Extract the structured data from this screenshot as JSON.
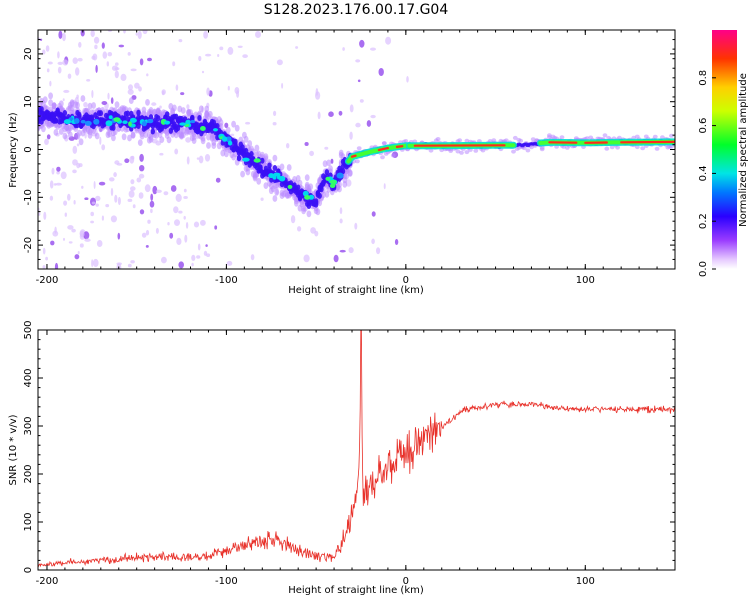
{
  "title": "S128.2023.176.00.17.G04",
  "chart_data": [
    {
      "type": "heatmap",
      "xlabel": "Height of straight line (km)",
      "ylabel": "Frequency (Hz)",
      "xlim": [
        -205,
        150
      ],
      "ylim": [
        -25,
        25
      ],
      "xticks": [
        -200,
        -100,
        0,
        100
      ],
      "yticks": [
        -20,
        -10,
        0,
        10,
        20
      ],
      "colorbar": {
        "label": "Normalized spectral amplitude",
        "range": [
          0,
          1
        ],
        "ticks": [
          "0.0",
          "0.2",
          "0.4",
          "0.6",
          "0.8"
        ]
      },
      "ridge": [
        {
          "x": -200,
          "y": 7
        },
        {
          "x": -180,
          "y": 6
        },
        {
          "x": -160,
          "y": 6.2
        },
        {
          "x": -140,
          "y": 5.5
        },
        {
          "x": -120,
          "y": 5.5
        },
        {
          "x": -110,
          "y": 5
        },
        {
          "x": -100,
          "y": 2
        },
        {
          "x": -90,
          "y": -1
        },
        {
          "x": -80,
          "y": -4
        },
        {
          "x": -70,
          "y": -6
        },
        {
          "x": -60,
          "y": -9
        },
        {
          "x": -50,
          "y": -11
        },
        {
          "x": -45,
          "y": -6
        },
        {
          "x": -40,
          "y": -7
        },
        {
          "x": -35,
          "y": -4
        },
        {
          "x": -30,
          "y": -1.5
        },
        {
          "x": -20,
          "y": -0.5
        },
        {
          "x": -10,
          "y": 0.3
        },
        {
          "x": 0,
          "y": 0.8
        },
        {
          "x": 20,
          "y": 0.8
        },
        {
          "x": 60,
          "y": 0.9
        },
        {
          "x": 80,
          "y": 1.5
        },
        {
          "x": 100,
          "y": 1.4
        },
        {
          "x": 120,
          "y": 1.5
        },
        {
          "x": 150,
          "y": 1.6
        }
      ]
    },
    {
      "type": "line",
      "xlabel": "Height of straight line (km)",
      "ylabel": "SNR (10 * v/v)",
      "xlim": [
        -205,
        150
      ],
      "ylim": [
        0,
        500
      ],
      "xticks": [
        -200,
        -100,
        0,
        100
      ],
      "yticks": [
        0,
        100,
        200,
        300,
        400,
        500
      ],
      "color": "#e8312a",
      "series": [
        {
          "x": [
            -205,
            -190,
            -170,
            -150,
            -135,
            -120,
            -110,
            -100,
            -90,
            -80,
            -75,
            -70,
            -65,
            -60,
            -55,
            -50,
            -45,
            -40,
            -35,
            -32,
            -30,
            -28,
            -26,
            -25,
            -24,
            -22,
            -20,
            -15,
            -10,
            -5,
            0,
            5,
            10,
            15,
            20,
            25,
            30,
            40,
            50,
            60,
            70,
            80,
            90,
            100,
            110,
            120,
            130,
            140,
            150
          ],
          "y": [
            10,
            15,
            20,
            25,
            28,
            25,
            30,
            40,
            50,
            60,
            65,
            55,
            50,
            40,
            35,
            30,
            28,
            25,
            60,
            90,
            120,
            150,
            190,
            500,
            150,
            160,
            180,
            200,
            220,
            230,
            240,
            260,
            280,
            290,
            300,
            310,
            330,
            340,
            345,
            345,
            345,
            340,
            335,
            335,
            335,
            335,
            335,
            335,
            335
          ]
        }
      ]
    }
  ]
}
